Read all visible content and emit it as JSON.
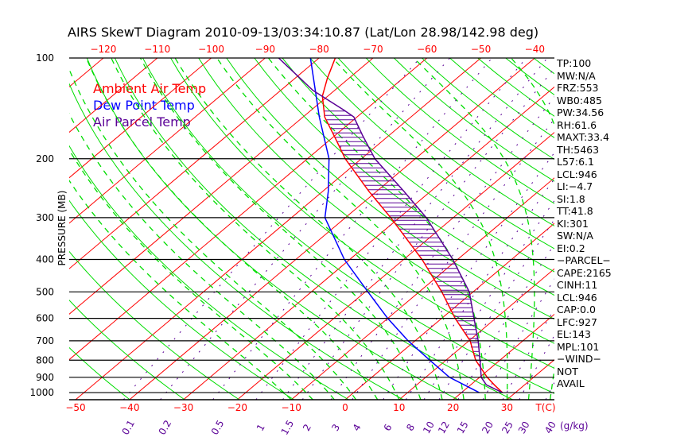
{
  "chart_data": {
    "type": "line",
    "subtype": "skew-T log-p",
    "title": "AIRS SkewT Diagram 2010-09-13/03:34:10.87 (Lat/Lon 28.98/142.98 deg)",
    "ylabel": "PRESSURE (MB)",
    "xlabel": "T(C)",
    "mixing_ratio_unit": "(g/kg)",
    "pressure_ticks": [
      100,
      200,
      300,
      400,
      500,
      600,
      700,
      800,
      900,
      1000
    ],
    "pressure_range": [
      100,
      1050
    ],
    "bottom_temp_ticks": [
      -50,
      -40,
      -30,
      -20,
      -10,
      0,
      10,
      20,
      30
    ],
    "top_temp_ticks": [
      -120,
      -110,
      -100,
      -90,
      -80,
      -70,
      -60,
      -50,
      -40
    ],
    "mixing_ratio_labels": [
      "0.1",
      "0.2",
      "0.5",
      "1",
      "1.5",
      "2",
      "3",
      "4",
      "6",
      "8",
      "10",
      "12",
      "15",
      "20",
      "25",
      "30",
      "40"
    ],
    "legend": [
      {
        "label": "Ambient Air Temp",
        "color": "#ff0000"
      },
      {
        "label": "Dew Point Temp",
        "color": "#0000ff"
      },
      {
        "label": "Air Parcel Temp",
        "color": "#5a0096"
      }
    ],
    "series": [
      {
        "name": "Ambient Air Temp",
        "color": "#ff0000",
        "points": [
          [
            1000,
            27.6
          ],
          [
            950,
            24.5
          ],
          [
            900,
            21.4
          ],
          [
            800,
            15.5
          ],
          [
            700,
            10.2
          ],
          [
            600,
            2.5
          ],
          [
            500,
            -5.8
          ],
          [
            400,
            -16.6
          ],
          [
            300,
            -31.6
          ],
          [
            250,
            -41.5
          ],
          [
            200,
            -53
          ],
          [
            175,
            -59
          ],
          [
            150,
            -66
          ],
          [
            130,
            -71
          ],
          [
            115,
            -74
          ],
          [
            100,
            -77
          ]
        ]
      },
      {
        "name": "Dew Point Temp",
        "color": "#0000ff",
        "points": [
          [
            1000,
            23.3
          ],
          [
            900,
            14.4
          ],
          [
            800,
            7
          ],
          [
            700,
            -1.3
          ],
          [
            600,
            -10
          ],
          [
            500,
            -19.5
          ],
          [
            400,
            -31
          ],
          [
            300,
            -43.8
          ],
          [
            250,
            -49
          ],
          [
            200,
            -56
          ],
          [
            150,
            -67
          ],
          [
            100,
            -81.6
          ]
        ]
      },
      {
        "name": "Air Parcel Temp",
        "color": "#5a0096",
        "points": [
          [
            1000,
            27.6
          ],
          [
            948,
            22.9
          ],
          [
            900,
            20.3
          ],
          [
            800,
            16.3
          ],
          [
            700,
            11.7
          ],
          [
            600,
            6
          ],
          [
            500,
            -0.7
          ],
          [
            400,
            -10.9
          ],
          [
            300,
            -25
          ],
          [
            250,
            -35
          ],
          [
            200,
            -47.5
          ],
          [
            170,
            -55
          ],
          [
            150,
            -60.6
          ],
          [
            143,
            -64
          ],
          [
            125,
            -74
          ],
          [
            100,
            -87.5
          ]
        ]
      }
    ]
  },
  "indices": [
    "TP:100",
    "MW:N/A",
    "FRZ:553",
    "WB0:485",
    "PW:34.56",
    "RH:61.6",
    "MAXT:33.4",
    "TH:5463",
    "L57:6.1",
    "LCL:946",
    "LI:−4.7",
    "SI:1.8",
    "TT:41.8",
    "KI:301",
    "SW:N/A",
    "EI:0.2",
    "−PARCEL−",
    "CAPE:2165",
    "CINH:11",
    "LCL:946",
    "CAP:0.0",
    "LFC:927",
    "EL:143",
    "MPL:101",
    "−WIND−",
    "NOT",
    "AVAIL"
  ],
  "colors": {
    "isotherm": "#ff0000",
    "dry_adiabat": "#00dd00",
    "moist_adiabat": "#00dd00",
    "mixing_ratio": "#5a0096",
    "isobar": "#000000"
  }
}
